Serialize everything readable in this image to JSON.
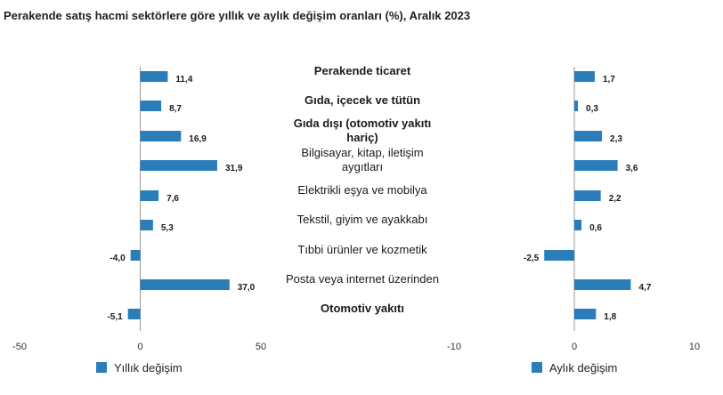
{
  "title": "Perakende satış hacmi sektörlere göre yıllık ve aylık değişim oranları (%), Aralık 2023",
  "colors": {
    "bar": "#2a7db8",
    "axis": "#999999",
    "text": "#1a1a1a"
  },
  "chart_data": [
    {
      "type": "bar",
      "orientation": "horizontal",
      "series_name": "Yıllık değişim",
      "categories": [
        "Perakende ticaret",
        "Gıda, içecek ve tütün",
        "Gıda dışı (otomotiv yakıtı hariç)",
        "Bilgisayar, kitap, iletişim aygıtları",
        "Elektrikli eşya ve mobilya",
        "Tekstil, giyim ve ayakkabı",
        "Tıbbi ürünler ve kozmetik",
        "Posta veya internet üzerinden",
        "Otomotiv yakıtı"
      ],
      "values": [
        11.4,
        8.7,
        16.9,
        31.9,
        7.6,
        5.3,
        -4.0,
        37.0,
        -5.1
      ],
      "value_labels": [
        "11,4",
        "8,7",
        "16,9",
        "31,9",
        "7,6",
        "5,3",
        "-4,0",
        "37,0",
        "-5,1"
      ],
      "xlim": [
        -50,
        50
      ],
      "xticks": [
        -50,
        0,
        50
      ],
      "xtick_labels": [
        "-50",
        "0",
        "50"
      ],
      "legend": "bottom"
    },
    {
      "type": "bar",
      "orientation": "horizontal",
      "series_name": "Aylık değişim",
      "categories": [
        "Perakende ticaret",
        "Gıda, içecek ve tütün",
        "Gıda dışı (otomotiv yakıtı hariç)",
        "Bilgisayar, kitap, iletişim aygıtları",
        "Elektrikli eşya ve mobilya",
        "Tekstil, giyim ve ayakkabı",
        "Tıbbi ürünler ve kozmetik",
        "Posta veya internet üzerinden",
        "Otomotiv yakıtı"
      ],
      "values": [
        1.7,
        0.3,
        2.3,
        3.6,
        2.2,
        0.6,
        -2.5,
        4.7,
        1.8
      ],
      "value_labels": [
        "1,7",
        "0,3",
        "2,3",
        "3,6",
        "2,2",
        "0,6",
        "-2,5",
        "4,7",
        "1,8"
      ],
      "xlim": [
        -10,
        10
      ],
      "xticks": [
        -10,
        0,
        10
      ],
      "xtick_labels": [
        "-10",
        "0",
        "10"
      ],
      "legend": "bottom"
    }
  ],
  "category_lines": [
    [
      "Perakende ticaret"
    ],
    [
      "Gıda, içecek ve tütün"
    ],
    [
      "Gıda dışı (otomotiv yakıtı",
      "hariç)"
    ],
    [
      "Bilgisayar, kitap, iletişim",
      "aygıtları"
    ],
    [
      "Elektrikli eşya ve mobilya"
    ],
    [
      "Tekstil, giyim ve ayakkabı"
    ],
    [
      "Tıbbi ürünler ve kozmetik"
    ],
    [
      "Posta veya internet üzerinden"
    ],
    [
      "Otomotiv yakıtı"
    ]
  ],
  "category_bold": [
    true,
    true,
    true,
    false,
    false,
    false,
    false,
    false,
    true
  ]
}
